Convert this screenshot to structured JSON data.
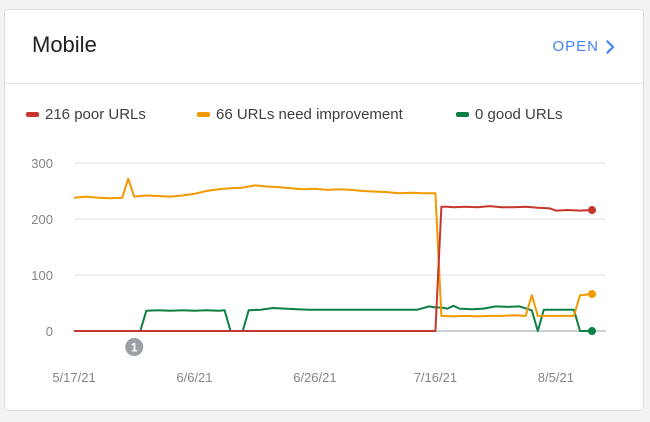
{
  "card": {
    "title": "Mobile",
    "open_label": "OPEN"
  },
  "legend": [
    {
      "label": "216 poor URLs",
      "color": "#c5372c"
    },
    {
      "label": "66 URLs need improvement",
      "color": "#f29900"
    },
    {
      "label": "0 good URLs",
      "color": "#0d8043"
    }
  ],
  "annotation": {
    "label": "1",
    "x": "5/27/21"
  },
  "chart_data": {
    "type": "line",
    "title": "",
    "xlabel": "",
    "ylabel": "",
    "ylim": [
      0,
      300
    ],
    "yticks": [
      0,
      100,
      200,
      300
    ],
    "xticks": [
      "5/17/21",
      "6/6/21",
      "6/26/21",
      "7/16/21",
      "8/5/21"
    ],
    "x_start": "5/17/21",
    "x_end": "8/11/21",
    "grid": "horizontal",
    "series": [
      {
        "name": "216 poor URLs",
        "color": "#c5372c",
        "points": [
          [
            "5/17/21",
            0
          ],
          [
            "7/16/21",
            0
          ],
          [
            "7/17/21",
            222
          ],
          [
            "7/18/21",
            222
          ],
          [
            "7/19/21",
            221
          ],
          [
            "7/21/21",
            222
          ],
          [
            "7/23/21",
            221
          ],
          [
            "7/25/21",
            223
          ],
          [
            "7/27/21",
            221
          ],
          [
            "7/29/21",
            221
          ],
          [
            "7/31/21",
            222
          ],
          [
            "8/2/21",
            220
          ],
          [
            "8/4/21",
            219
          ],
          [
            "8/5/21",
            215
          ],
          [
            "8/7/21",
            216
          ],
          [
            "8/9/21",
            215
          ],
          [
            "8/11/21",
            216
          ]
        ]
      },
      {
        "name": "66 URLs need improvement",
        "color": "#f29900",
        "points": [
          [
            "5/17/21",
            238
          ],
          [
            "5/19/21",
            240
          ],
          [
            "5/21/21",
            238
          ],
          [
            "5/23/21",
            237
          ],
          [
            "5/25/21",
            238
          ],
          [
            "5/26/21",
            272
          ],
          [
            "5/27/21",
            240
          ],
          [
            "5/29/21",
            242
          ],
          [
            "5/31/21",
            241
          ],
          [
            "6/2/21",
            240
          ],
          [
            "6/4/21",
            242
          ],
          [
            "6/6/21",
            245
          ],
          [
            "6/8/21",
            250
          ],
          [
            "6/10/21",
            253
          ],
          [
            "6/12/21",
            255
          ],
          [
            "6/14/21",
            256
          ],
          [
            "6/16/21",
            260
          ],
          [
            "6/18/21",
            258
          ],
          [
            "6/20/21",
            257
          ],
          [
            "6/22/21",
            255
          ],
          [
            "6/24/21",
            253
          ],
          [
            "6/26/21",
            254
          ],
          [
            "6/28/21",
            252
          ],
          [
            "6/30/21",
            253
          ],
          [
            "7/2/21",
            252
          ],
          [
            "7/4/21",
            250
          ],
          [
            "7/6/21",
            249
          ],
          [
            "7/8/21",
            248
          ],
          [
            "7/10/21",
            246
          ],
          [
            "7/12/21",
            247
          ],
          [
            "7/14/21",
            246
          ],
          [
            "7/16/21",
            246
          ],
          [
            "7/17/21",
            27
          ],
          [
            "7/19/21",
            26
          ],
          [
            "7/21/21",
            27
          ],
          [
            "7/23/21",
            26
          ],
          [
            "7/25/21",
            27
          ],
          [
            "7/27/21",
            27
          ],
          [
            "7/29/21",
            28
          ],
          [
            "7/31/21",
            27
          ],
          [
            "8/1/21",
            64
          ],
          [
            "8/2/21",
            27
          ],
          [
            "8/4/21",
            27
          ],
          [
            "8/6/21",
            27
          ],
          [
            "8/8/21",
            27
          ],
          [
            "8/9/21",
            64
          ],
          [
            "8/11/21",
            66
          ]
        ]
      },
      {
        "name": "0 good URLs",
        "color": "#0d8043",
        "points": [
          [
            "5/17/21",
            0
          ],
          [
            "5/28/21",
            0
          ],
          [
            "5/29/21",
            36
          ],
          [
            "5/31/21",
            37
          ],
          [
            "6/2/21",
            36
          ],
          [
            "6/4/21",
            37
          ],
          [
            "6/6/21",
            36
          ],
          [
            "6/8/21",
            37
          ],
          [
            "6/10/21",
            36
          ],
          [
            "6/11/21",
            37
          ],
          [
            "6/12/21",
            0
          ],
          [
            "6/14/21",
            0
          ],
          [
            "6/15/21",
            37
          ],
          [
            "6/17/21",
            38
          ],
          [
            "6/19/21",
            41
          ],
          [
            "6/21/21",
            40
          ],
          [
            "6/23/21",
            39
          ],
          [
            "6/25/21",
            38
          ],
          [
            "6/27/21",
            38
          ],
          [
            "6/29/21",
            38
          ],
          [
            "7/1/21",
            38
          ],
          [
            "7/3/21",
            38
          ],
          [
            "7/5/21",
            38
          ],
          [
            "7/7/21",
            38
          ],
          [
            "7/9/21",
            38
          ],
          [
            "7/11/21",
            38
          ],
          [
            "7/13/21",
            38
          ],
          [
            "7/15/21",
            44
          ],
          [
            "7/16/21",
            42
          ],
          [
            "7/17/21",
            42
          ],
          [
            "7/18/21",
            40
          ],
          [
            "7/19/21",
            45
          ],
          [
            "7/20/21",
            40
          ],
          [
            "7/22/21",
            39
          ],
          [
            "7/24/21",
            40
          ],
          [
            "7/26/21",
            44
          ],
          [
            "7/28/21",
            43
          ],
          [
            "7/30/21",
            44
          ],
          [
            "8/1/21",
            37
          ],
          [
            "8/2/21",
            0
          ],
          [
            "8/3/21",
            38
          ],
          [
            "8/5/21",
            38
          ],
          [
            "8/7/21",
            38
          ],
          [
            "8/8/21",
            38
          ],
          [
            "8/9/21",
            0
          ],
          [
            "8/11/21",
            0
          ]
        ]
      }
    ]
  }
}
